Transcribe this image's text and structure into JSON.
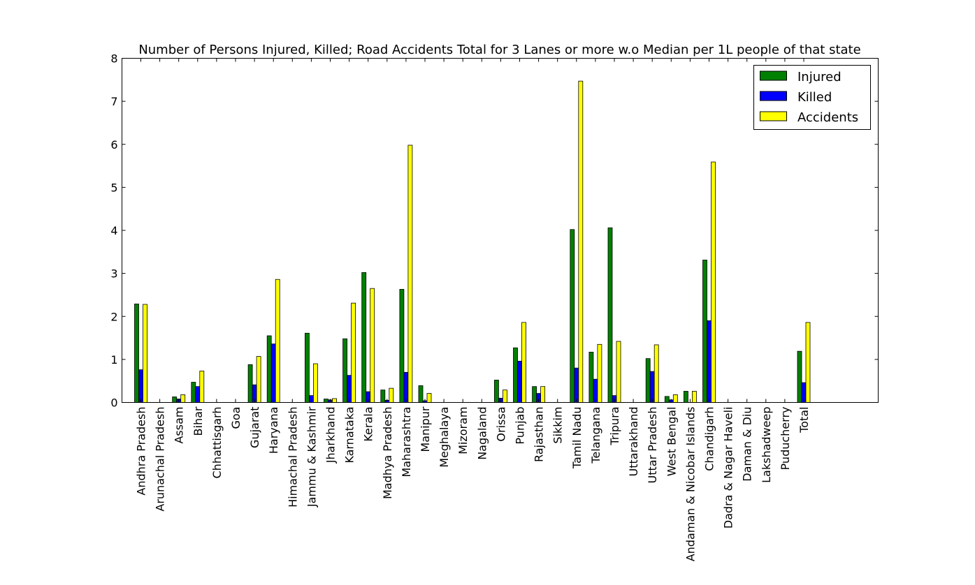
{
  "chart_data": {
    "type": "bar",
    "title": "Number of Persons Injured, Killed; Road Accidents Total for 3 Lanes or more w.o Median per 1L people of that state",
    "xlabel": "",
    "ylabel": "",
    "ylim": [
      0,
      8
    ],
    "yticks": [
      "0",
      "1",
      "2",
      "3",
      "4",
      "5",
      "6",
      "7",
      "8"
    ],
    "grid": false,
    "legend_position": "top-right",
    "categories": [
      "Andhra Pradesh",
      "Arunachal Pradesh",
      "Assam",
      "Bihar",
      "Chhattisgarh",
      "Goa",
      "Gujarat",
      "Haryana",
      "Himachal Pradesh",
      "Jammu & Kashmir",
      "Jharkhand",
      "Karnataka",
      "Kerala",
      "Madhya Pradesh",
      "Maharashtra",
      "Manipur",
      "Meghalaya",
      "Mizoram",
      "Nagaland",
      "Orissa",
      "Punjab",
      "Rajasthan",
      "Sikkim",
      "Tamil Nadu",
      "Telangana",
      "Tripura",
      "Uttarakhand",
      "Uttar Pradesh",
      "West Bengal",
      "Andaman & Nicobar Islands",
      "Chandigarh",
      "Dadra & Nagar Haveli",
      "Daman & Diu",
      "Lakshadweep",
      "Puducherry",
      "Total"
    ],
    "series": [
      {
        "name": "Injured",
        "color": "#008000",
        "values": [
          2.29,
          0,
          0.13,
          0.47,
          0,
          0,
          0.88,
          1.55,
          0,
          1.61,
          0.08,
          1.48,
          3.02,
          0.29,
          2.63,
          0.39,
          0,
          0,
          0,
          0.52,
          1.27,
          0.37,
          0,
          4.02,
          1.17,
          4.06,
          0,
          1.02,
          0.14,
          0.26,
          3.31,
          0,
          0,
          0,
          0,
          1.19
        ]
      },
      {
        "name": "Killed",
        "color": "#0000ff",
        "values": [
          0.76,
          0,
          0.08,
          0.37,
          0,
          0,
          0.41,
          1.36,
          0,
          0.16,
          0.06,
          0.63,
          0.25,
          0.05,
          0.7,
          0.04,
          0,
          0,
          0,
          0.1,
          0.96,
          0.21,
          0,
          0.8,
          0.54,
          0.16,
          0,
          0.72,
          0.06,
          0,
          1.9,
          0,
          0,
          0,
          0,
          0.46
        ]
      },
      {
        "name": "Accidents",
        "color": "#ffff00",
        "values": [
          2.28,
          0,
          0.18,
          0.73,
          0,
          0,
          1.07,
          2.86,
          0,
          0.9,
          0.09,
          2.31,
          2.65,
          0.33,
          5.98,
          0.21,
          0,
          0,
          0,
          0.29,
          1.86,
          0.37,
          0,
          7.47,
          1.35,
          1.42,
          0,
          1.34,
          0.18,
          0.26,
          5.59,
          0,
          0,
          0,
          0,
          1.86
        ]
      }
    ]
  }
}
